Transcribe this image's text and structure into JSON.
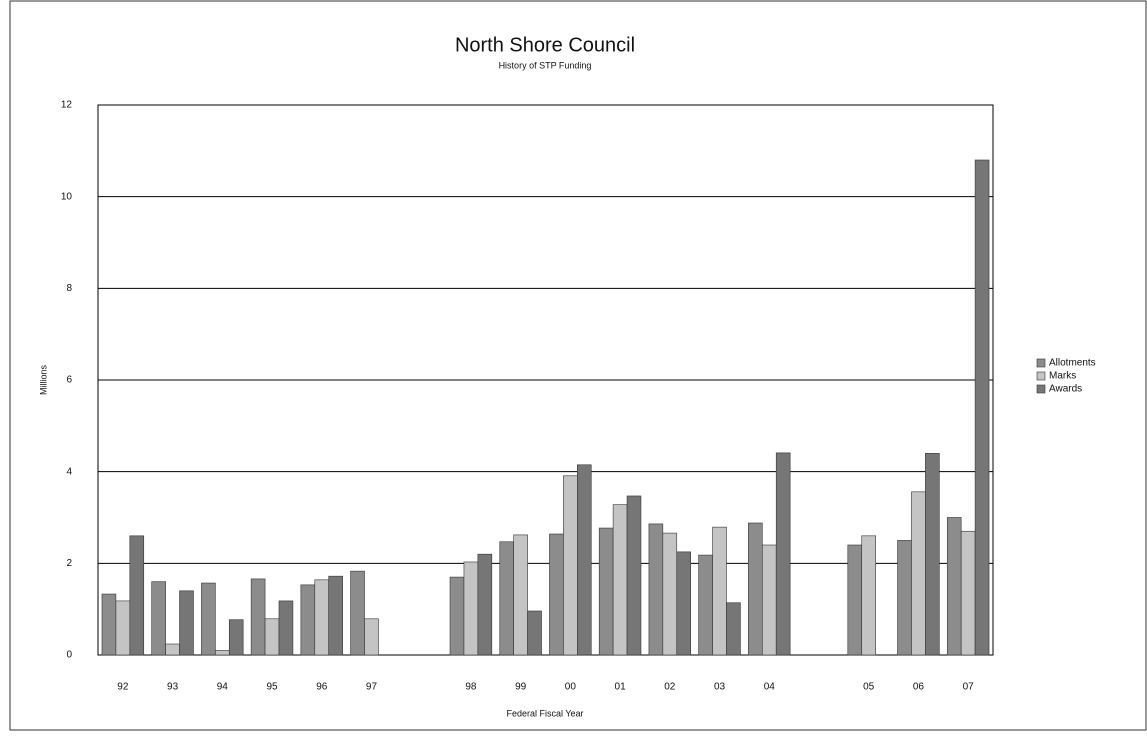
{
  "chart_data": {
    "type": "bar",
    "title": "North Shore Council",
    "subtitle": "History of STP Funding",
    "y_label": "Millions",
    "x_label": "Federal Fiscal Year",
    "categories": [
      "92",
      "93",
      "94",
      "95",
      "96",
      "97",
      null,
      "98",
      "99",
      "00",
      "01",
      "02",
      "03",
      "04",
      null,
      "05",
      "06",
      "07"
    ],
    "series": [
      {
        "name": "Allotments",
        "color": "#8c8c8c",
        "values": [
          1.33,
          1.6,
          1.57,
          1.66,
          1.53,
          1.83,
          null,
          1.7,
          2.47,
          2.64,
          2.77,
          2.86,
          2.18,
          2.88,
          null,
          2.4,
          2.5,
          3.0
        ]
      },
      {
        "name": "Marks",
        "color": "#c4c4c4",
        "values": [
          1.18,
          0.24,
          0.1,
          0.79,
          1.64,
          0.79,
          null,
          2.03,
          2.62,
          3.91,
          3.28,
          2.66,
          2.79,
          2.4,
          null,
          2.6,
          3.56,
          2.7
        ]
      },
      {
        "name": "Awards",
        "color": "#767676",
        "values": [
          2.6,
          1.4,
          0.77,
          1.18,
          1.72,
          null,
          null,
          2.2,
          0.96,
          4.15,
          3.47,
          2.25,
          1.14,
          4.41,
          null,
          null,
          4.4,
          10.8
        ]
      }
    ],
    "ylim": [
      0,
      12
    ],
    "yticks": [
      0,
      2,
      4,
      6,
      8,
      10,
      12
    ],
    "grid": true,
    "legend": "right"
  }
}
